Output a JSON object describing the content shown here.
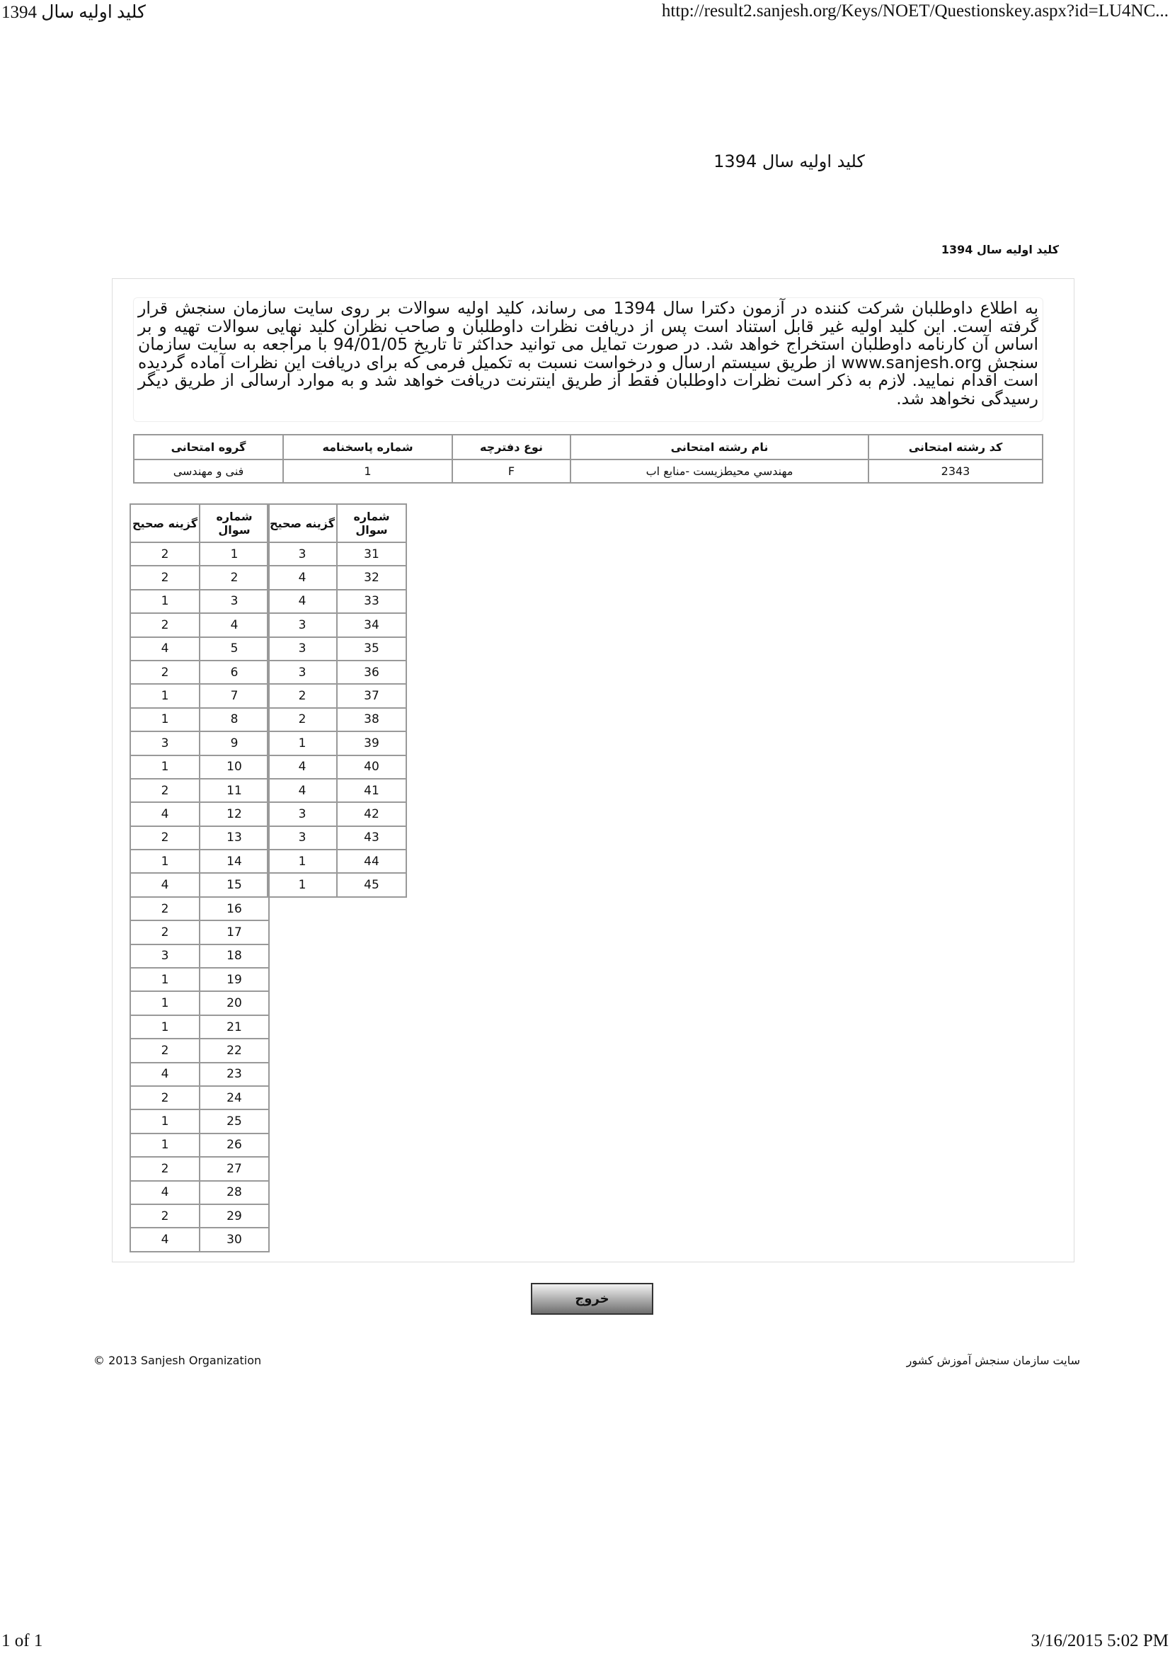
{
  "print_header": {
    "page_title": "كليد اوليه سال 1394",
    "url": "http://result2.sanjesh.org/Keys/NOET/Questionskey.aspx?id=LU4NC..."
  },
  "title": "كليد اوليه سال 1394",
  "subtitle": "كليد اوليه سال 1394",
  "notice": "به اطلاع داوطلبان شرکت کننده در آزمون دکترا سال 1394 می رساند، کلید اولیه سوالات بر روی سایت سازمان سنجش قرار گرفته است. این کلید اولیه غیر قابل استناد است پس از دریافت نظرات داوطلبان و صاحب نظران کلید نهایی سوالات تهیه و بر اساس آن کارنامه داوطلبان استخراج خواهد شد. در صورت تمایل می توانید حداکثر تا تاریخ 94/01/05 با مراجعه به سایت سازمان سنجش www.sanjesh.org از طریق  سیستم ارسال و درخواست نسبت به تکمیل فرمی که برای دریافت این نظرات آماده گردیده است اقدام نمایید. لازم به ذکر است نظرات داوطلبان فقط از طریق اینترنت دریافت خواهد شد و به موارد ارسالی از طریق دیگر رسیدگی نخواهد شد.",
  "info_table": {
    "headers": [
      "كد رشته امتحانی",
      "نام رشته امتحانی",
      "نوع دفترچه",
      "شماره پاسخنامه",
      "گروه امتحانی"
    ],
    "row": [
      "2343",
      "مهندسي محيطزيست -منابع اب",
      "F",
      "1",
      "فنی و مهندسی"
    ]
  },
  "answer_table": {
    "headers": [
      "شماره سوال",
      "گزینه صحیح"
    ],
    "answers": [
      2,
      2,
      1,
      2,
      4,
      2,
      1,
      1,
      3,
      1,
      2,
      4,
      2,
      1,
      4,
      2,
      2,
      3,
      1,
      1,
      1,
      2,
      4,
      2,
      1,
      1,
      2,
      4,
      2,
      4,
      3,
      4,
      4,
      3,
      3,
      3,
      2,
      2,
      1,
      4,
      4,
      3,
      3,
      1,
      1
    ]
  },
  "exit_button": "خروج",
  "footer": {
    "copyright": "© 2013 Sanjesh Organization",
    "site": "سایت سازمان سنجش آموزش کشور"
  },
  "print_footer": {
    "page": "1 of 1",
    "datetime": "3/16/2015 5:02 PM"
  }
}
